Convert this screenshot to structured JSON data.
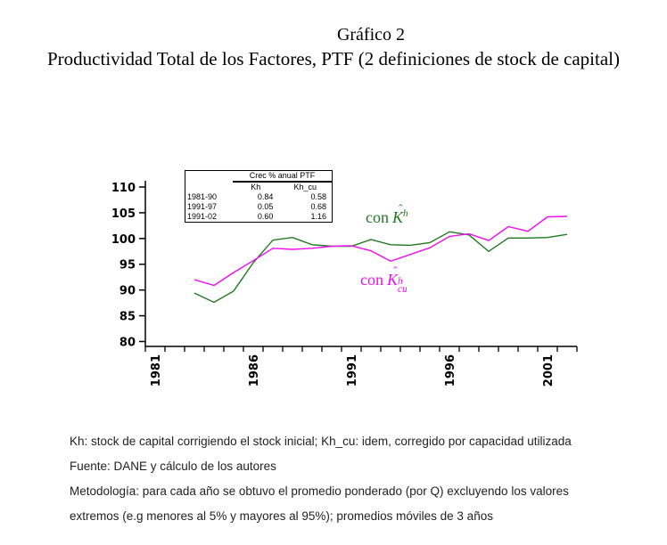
{
  "header": {
    "title": "Gráfico 2",
    "subtitle": "Productividad Total de los Factores, PTF (2 definiciones de stock de capital)"
  },
  "chart_data": {
    "type": "line",
    "title": "Gráfico 2",
    "subtitle": "Productividad Total de los Factores, PTF (2 definiciones de stock de capital)",
    "x": [
      1983,
      1984,
      1985,
      1986,
      1987,
      1988,
      1989,
      1990,
      1991,
      1992,
      1993,
      1994,
      1995,
      1996,
      1997,
      1998,
      1999,
      2000,
      2001,
      2002
    ],
    "series": [
      {
        "name": "con Kh",
        "color": "#1f7a1f",
        "values": [
          89.4,
          87.6,
          89.8,
          95.3,
          99.7,
          100.2,
          98.8,
          98.5,
          98.5,
          99.8,
          98.8,
          98.7,
          99.2,
          101.3,
          100.7,
          97.5,
          100.1,
          100.1,
          100.2,
          100.8
        ]
      },
      {
        "name": "con Kh_cu",
        "color": "#f20cf2",
        "values": [
          92.0,
          90.9,
          93.4,
          95.7,
          98.1,
          97.9,
          98.1,
          98.5,
          98.6,
          97.6,
          95.6,
          96.9,
          98.2,
          100.4,
          100.9,
          99.6,
          102.3,
          101.4,
          104.2,
          104.3
        ]
      }
    ],
    "ylim": [
      80,
      110
    ],
    "yticks": [
      80,
      85,
      90,
      95,
      100,
      105,
      110
    ],
    "x_axis": {
      "start": 1981,
      "end": 2002,
      "labeled_ticks": [
        "1981",
        "1986",
        "1991",
        "1996",
        "2001"
      ]
    },
    "grid": "off",
    "legend_position": "inline-labels"
  },
  "stats_table": {
    "header": "Crec % anual PTF",
    "columns": [
      "Kh",
      "Kh_cu"
    ],
    "rows": [
      {
        "period": "1981-90",
        "kh": "0.84",
        "kh_cu": "0.58"
      },
      {
        "period": "1991-97",
        "kh": "0.05",
        "kh_cu": "0.68"
      },
      {
        "period": "1991-02",
        "kh": "0.60",
        "kh_cu": "1.16"
      }
    ]
  },
  "chart_labels": {
    "green": {
      "prefix": "con",
      "k": "K",
      "hat": "ˆ",
      "sup": "h"
    },
    "magenta": {
      "prefix": "con",
      "k": "K",
      "hat": "ˆ",
      "sup": "h",
      "sub": "cu"
    }
  },
  "footnotes": [
    "Kh: stock de capital corrigiendo el stock inicial;  Kh_cu: idem, corregido por capacidad utilizada",
    "Fuente: DANE y cálculo de los autores",
    "Metodología: para cada año se obtuvo el promedio ponderado (por Q) excluyendo los valores",
    "extremos (e.g menores al 5% y mayores al 95%); promedios móviles de 3 años"
  ]
}
